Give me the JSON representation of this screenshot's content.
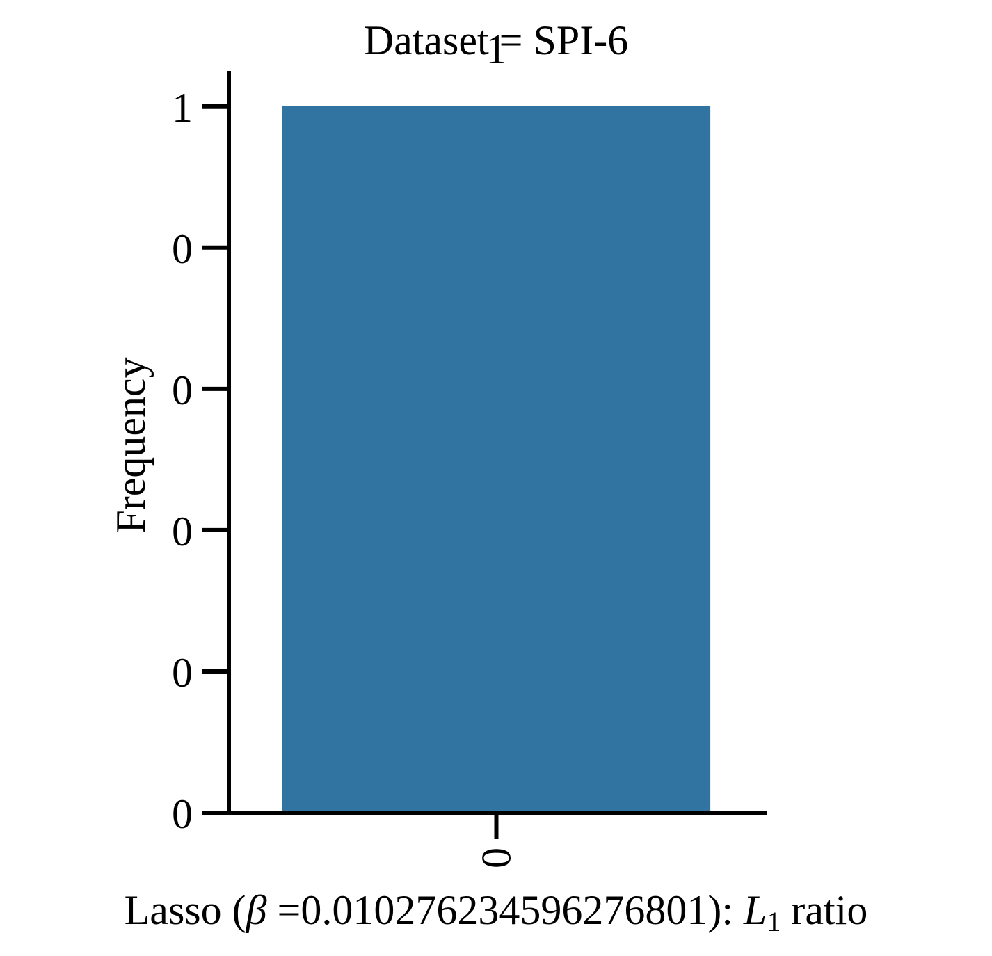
{
  "chart_data": {
    "type": "bar",
    "title": "Dataset = SPI-6",
    "xlabel_parts": {
      "prefix": "Lasso (",
      "beta_symbol": "β",
      "middle": " =0.010276234596276801): ",
      "l_symbol": "L",
      "l_subscript": "1",
      "suffix": " ratio"
    },
    "ylabel": "Frequency",
    "categories": [
      "0"
    ],
    "values": [
      1
    ],
    "data_labels": [
      "1"
    ],
    "yticks": [
      0,
      0.2,
      0.4,
      0.6,
      0.8,
      1.0
    ],
    "ytick_labels": [
      "0",
      "0",
      "0",
      "0",
      "0",
      "1"
    ],
    "ylim": [
      0,
      1.05
    ],
    "bar_color": "#3274a1",
    "grid": false,
    "legend": "none"
  }
}
